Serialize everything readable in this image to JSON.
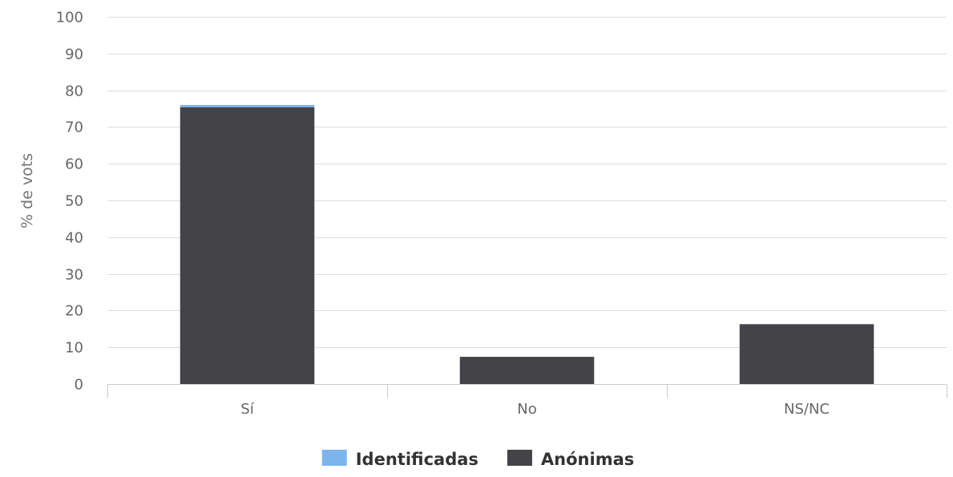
{
  "chart_data": {
    "type": "bar",
    "stacked": true,
    "title": "",
    "xlabel": "",
    "ylabel": "% de vots",
    "ylim": [
      0,
      100
    ],
    "yticks": [
      0,
      10,
      20,
      30,
      40,
      50,
      60,
      70,
      80,
      90,
      100
    ],
    "categories": [
      "Sí",
      "No",
      "NS/NC"
    ],
    "series": [
      {
        "name": "Identificadas",
        "color": "#7cb5ec",
        "values": [
          0.6,
          0,
          0
        ]
      },
      {
        "name": "Anónimas",
        "color": "#434348",
        "values": [
          75.4,
          7.4,
          16.3
        ]
      }
    ],
    "grid": true,
    "legend_position": "bottom-center"
  }
}
